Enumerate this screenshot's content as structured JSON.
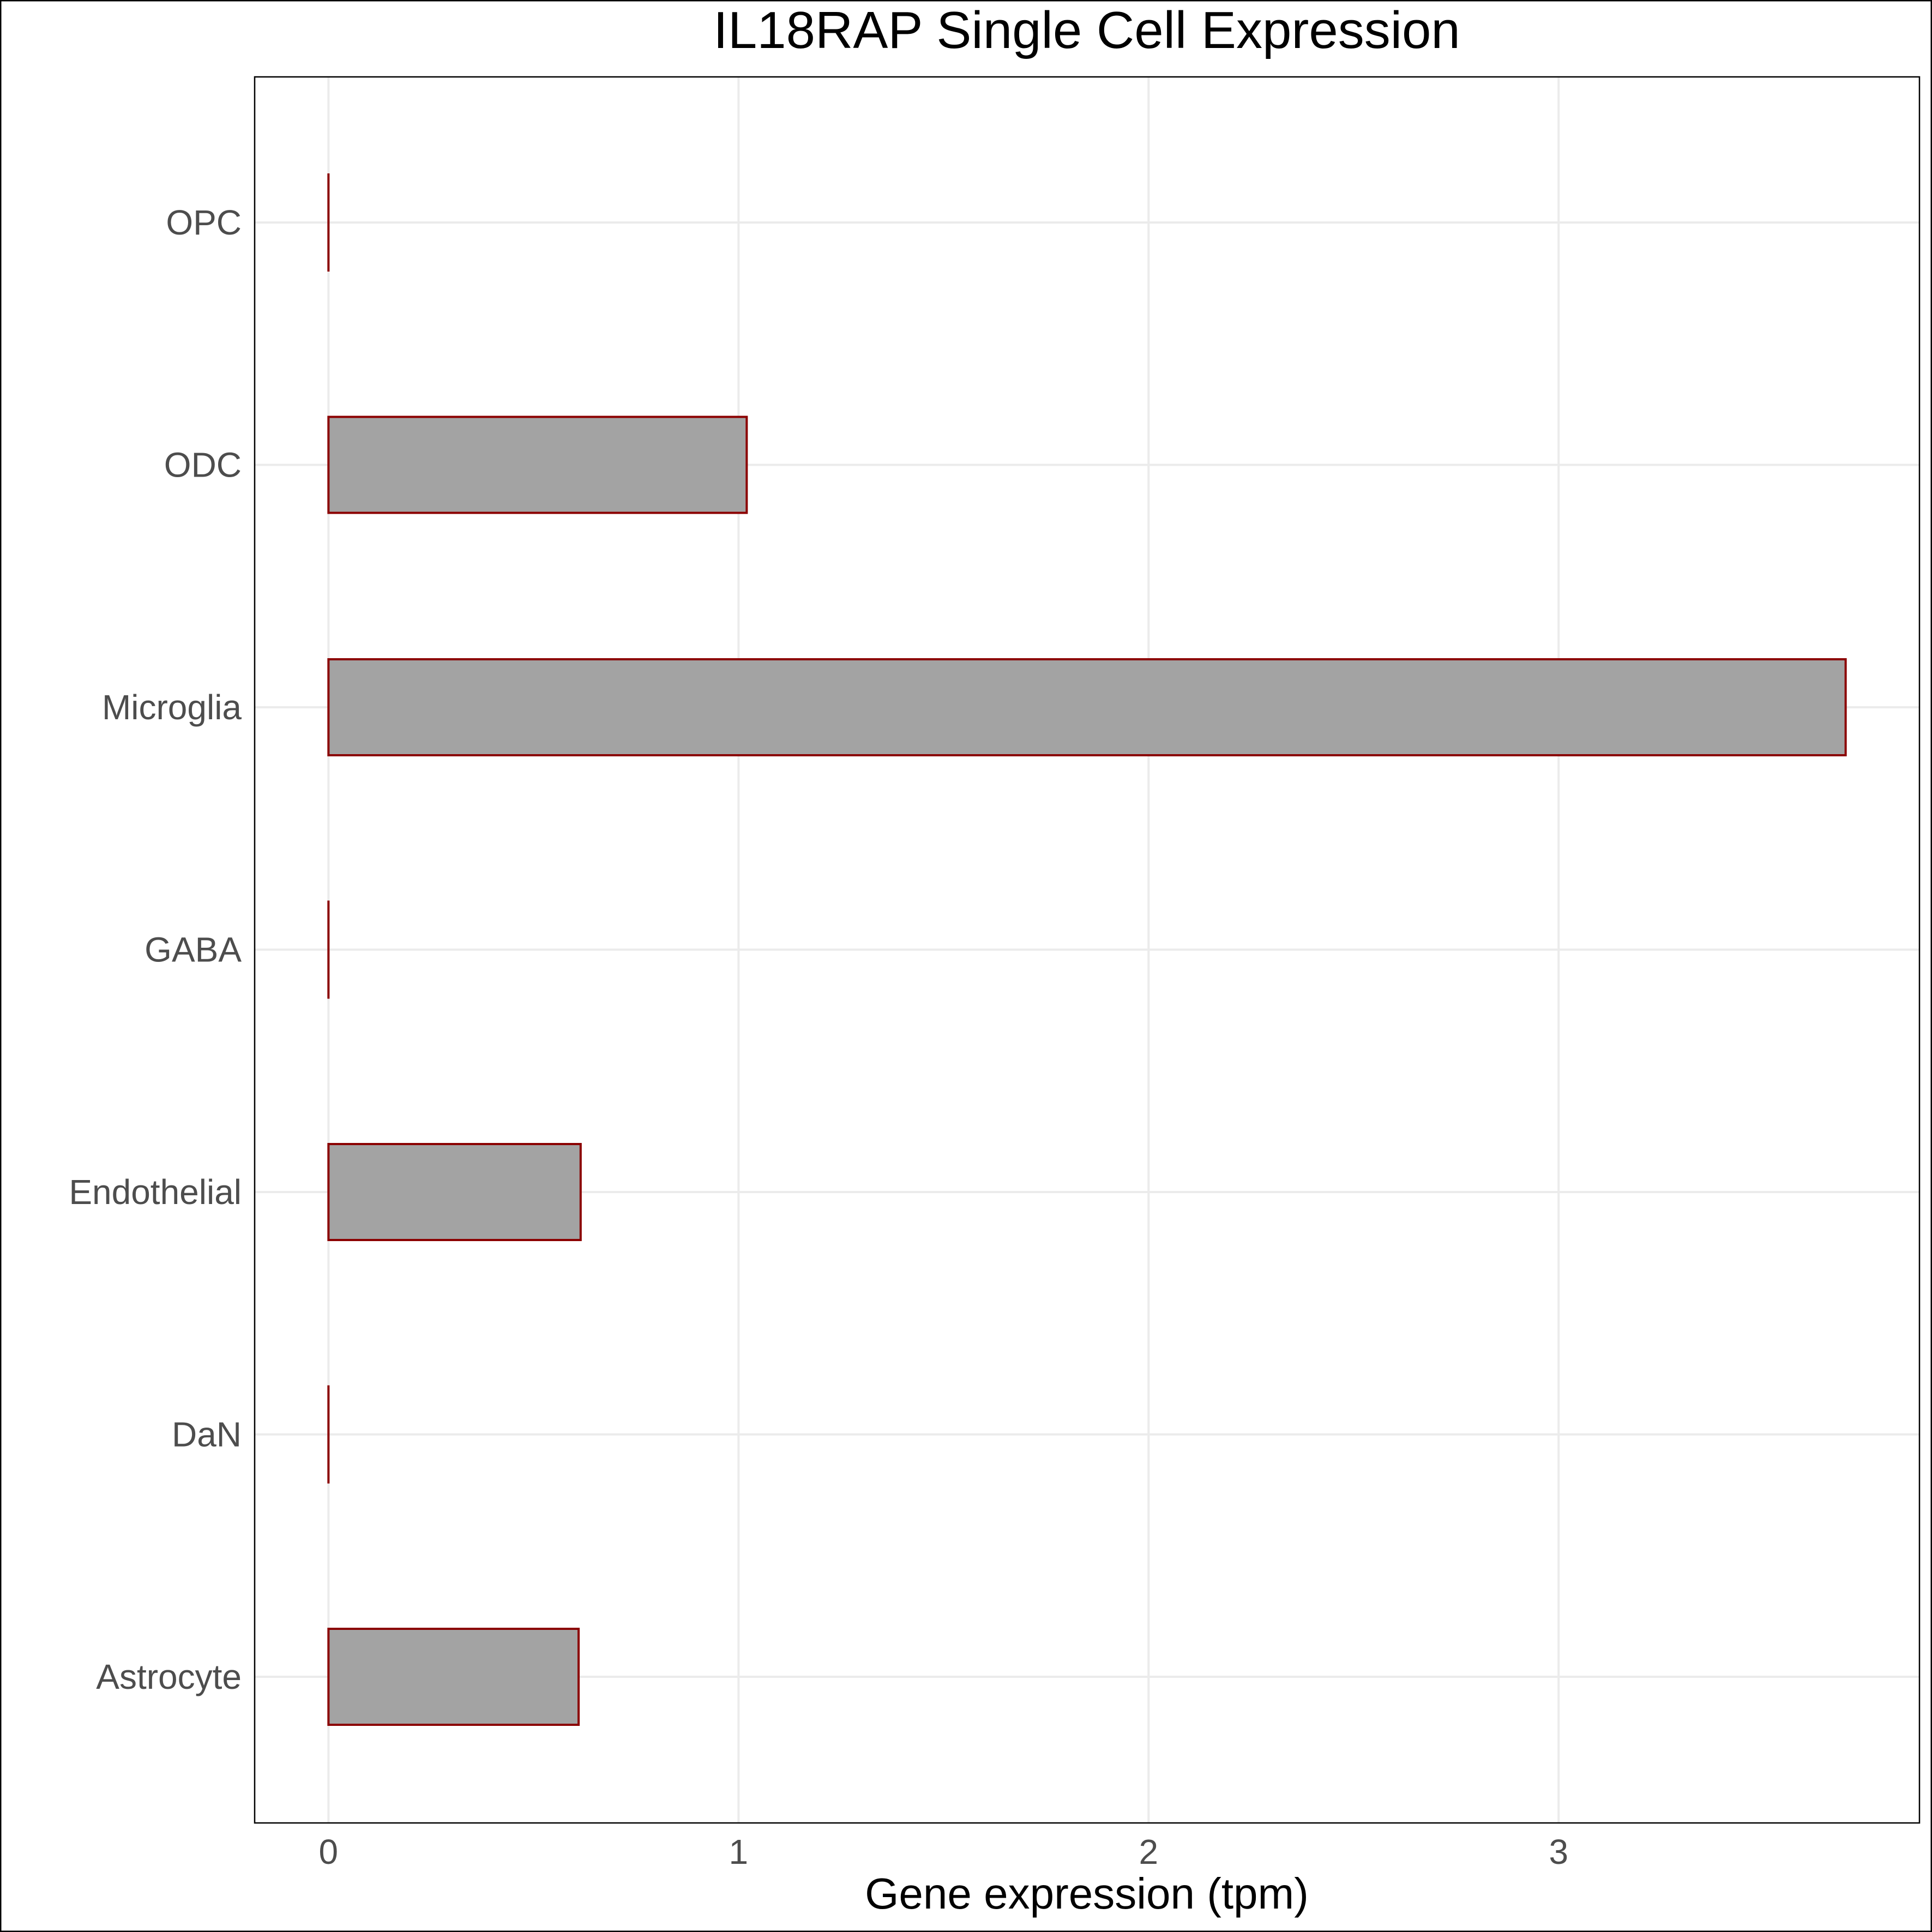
{
  "chart_data": {
    "type": "bar",
    "orientation": "horizontal",
    "title": "IL18RAP Single Cell Expression",
    "xlabel": "Gene expression (tpm)",
    "ylabel": "",
    "categories": [
      "Astrocyte",
      "DaN",
      "Endothelial",
      "GABA",
      "Microglia",
      "ODC",
      "OPC"
    ],
    "values": [
      0.61,
      0.0,
      0.615,
      0.0,
      3.7,
      1.02,
      0.0
    ],
    "xlim": [
      -0.18,
      3.88
    ],
    "xticks": [
      0,
      1,
      2,
      3
    ],
    "xtick_labels": [
      "0",
      "1",
      "2",
      "3"
    ],
    "grid": true,
    "colors": {
      "bar_fill": "#a3a3a3",
      "bar_stroke": "#8b0000",
      "grid": "#ebebeb",
      "panel_border": "#000000",
      "figure_border": "#000000"
    }
  }
}
